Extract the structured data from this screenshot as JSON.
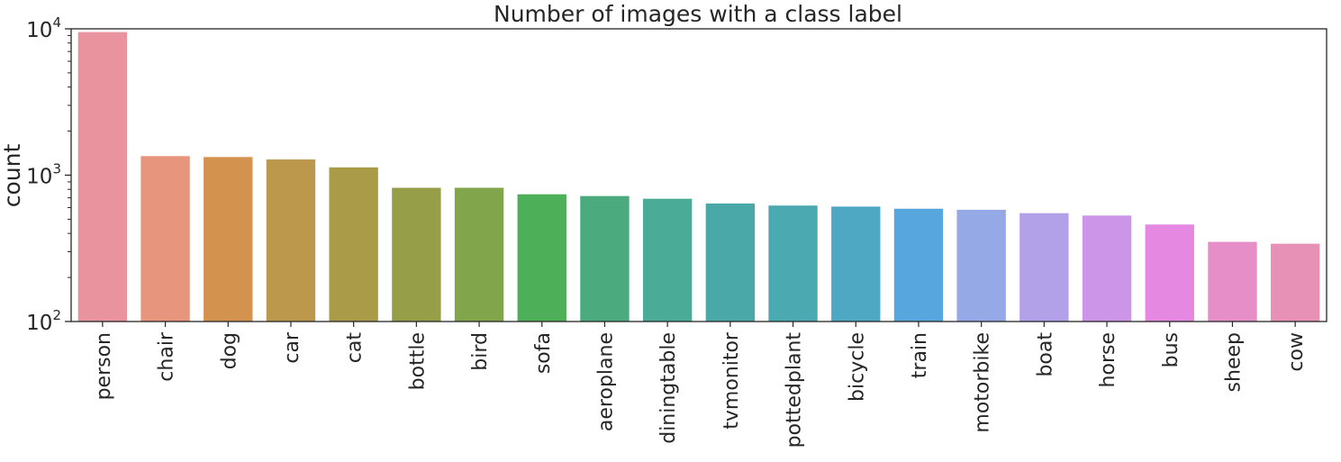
{
  "chart_data": {
    "type": "bar",
    "title": "Number of images with a class label",
    "xlabel": "",
    "ylabel": "count",
    "yscale": "log",
    "ylim": [
      100,
      10000
    ],
    "yticks": [
      {
        "base": "10",
        "exp": "2"
      },
      {
        "base": "10",
        "exp": "3"
      },
      {
        "base": "10",
        "exp": "4"
      }
    ],
    "grid": false,
    "categories": [
      "person",
      "chair",
      "dog",
      "car",
      "cat",
      "bottle",
      "bird",
      "sofa",
      "aeroplane",
      "diningtable",
      "tvmonitor",
      "pottedplant",
      "bicycle",
      "train",
      "motorbike",
      "boat",
      "horse",
      "bus",
      "sheep",
      "cow"
    ],
    "values": [
      9500,
      1350,
      1330,
      1280,
      1130,
      820,
      820,
      740,
      720,
      690,
      640,
      620,
      610,
      590,
      580,
      550,
      530,
      460,
      350,
      340
    ],
    "colors": [
      "#e8939e",
      "#e8957e",
      "#d4924f",
      "#bb984b",
      "#a99b48",
      "#969f47",
      "#80a54a",
      "#4daf57",
      "#4bab7e",
      "#4aab97",
      "#4aa9a8",
      "#4ba9b1",
      "#4ea8c4",
      "#57a7de",
      "#95a9e6",
      "#b2a0e8",
      "#cd95e8",
      "#e488e2",
      "#e68ec8",
      "#e891b7"
    ]
  }
}
